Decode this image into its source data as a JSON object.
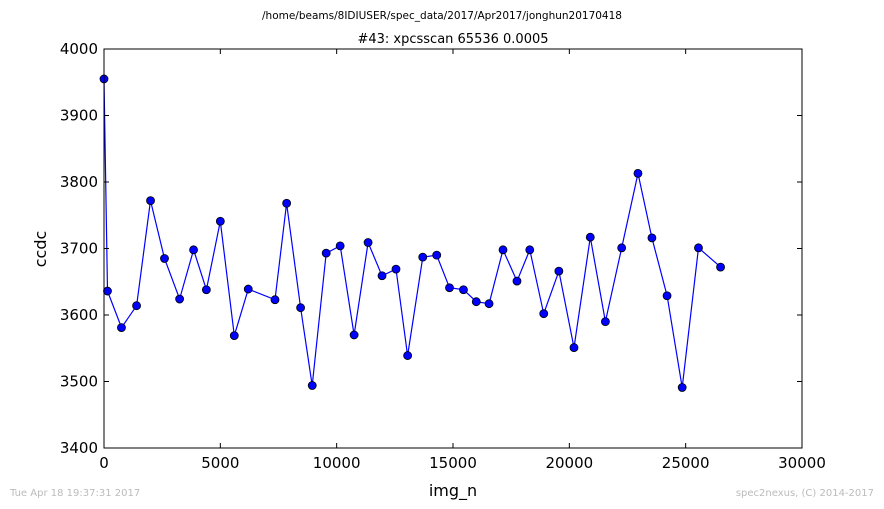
{
  "chart_data": {
    "type": "line",
    "suptitle": "/home/beams/8IDIUSER/spec_data/2017/Apr2017/jonghun20170418",
    "title": "#43: xpcsscan 65536 0.0005",
    "xlabel": "img_n",
    "ylabel": "ccdc",
    "xlim": [
      0,
      30000
    ],
    "ylim": [
      3400,
      4000
    ],
    "xticks": [
      "0",
      "5000",
      "10000",
      "15000",
      "20000",
      "25000",
      "30000"
    ],
    "yticks": [
      "3400",
      "3500",
      "3600",
      "3700",
      "3800",
      "3900",
      "4000"
    ],
    "grid": false,
    "line_color": "#0000ff",
    "series": [
      {
        "x": [
          0,
          150,
          750,
          1400,
          2000,
          2600,
          3250,
          3850,
          4400,
          5000,
          5600,
          6200,
          7350,
          7850,
          8450,
          8950,
          9550,
          10150,
          10750,
          11350,
          11950,
          12550,
          13050,
          13700,
          14300,
          14850,
          15450,
          16000,
          16550,
          17150,
          17750,
          18300,
          18900,
          19550,
          20200,
          20900,
          21550,
          22250,
          22950,
          23550,
          24200,
          24850,
          25550,
          26500
        ],
        "y": [
          3955,
          3636,
          3581,
          3614,
          3772,
          3685,
          3624,
          3698,
          3638,
          3741,
          3569,
          3639,
          3623,
          3768,
          3611,
          3494,
          3693,
          3704,
          3570,
          3709,
          3659,
          3669,
          3539,
          3687,
          3690,
          3641,
          3638,
          3620,
          3617,
          3698,
          3651,
          3698,
          3602,
          3666,
          3551,
          3717,
          3590,
          3701,
          3813,
          3716,
          3629,
          3491,
          3701,
          3672
        ]
      }
    ]
  },
  "footer": {
    "timestamp": "Tue Apr 18 19:37:31 2017",
    "credit": "spec2nexus, (C) 2014-2017"
  }
}
